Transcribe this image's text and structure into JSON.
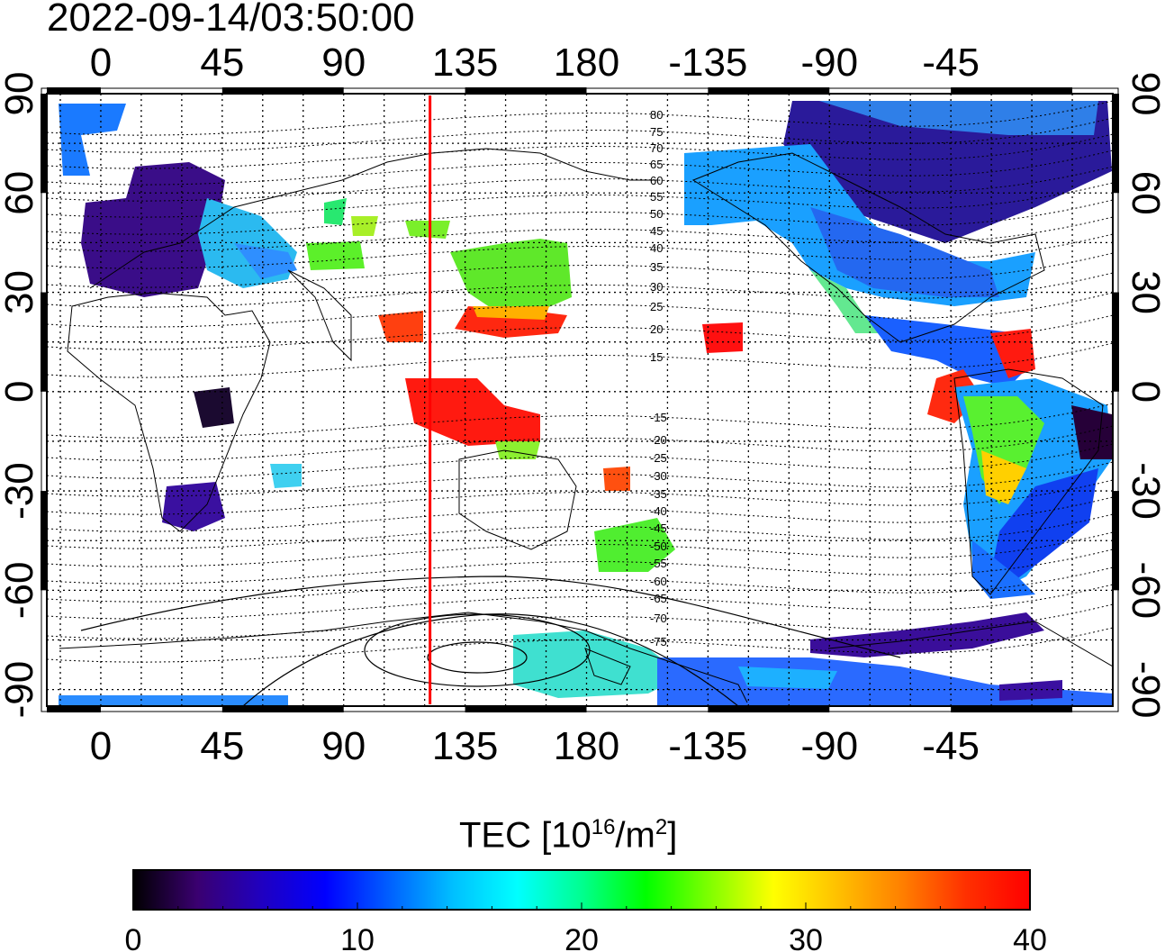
{
  "timestamp": "2022-09-14/03:50:00",
  "map": {
    "top_lon_ticks": [
      "0",
      "45",
      "90",
      "135",
      "180",
      "-135",
      "-90",
      "-45"
    ],
    "bottom_lon_ticks": [
      "0",
      "45",
      "90",
      "135",
      "180",
      "-135",
      "-90",
      "-45"
    ],
    "left_lat_ticks": [
      "90",
      "60",
      "30",
      "0",
      "-30",
      "-60",
      "-90"
    ],
    "right_lat_ticks": [
      "90",
      "60",
      "30",
      "0",
      "-30",
      "-60",
      "-90"
    ],
    "lon_values": [
      0,
      45,
      90,
      135,
      180,
      -135,
      -90,
      -45
    ],
    "lat_values": [
      90,
      60,
      30,
      0,
      -30,
      -60,
      -90
    ],
    "terminator_longitude": 122,
    "terminator_color": "#ff0000",
    "magnetic_latitude_labels": [
      "80",
      "75",
      "70",
      "65",
      "60",
      "55",
      "50",
      "45",
      "40",
      "35",
      "30",
      "25",
      "20",
      "15",
      "-15",
      "-20",
      "-25",
      "-30",
      "-35",
      "-40",
      "-45",
      "-50",
      "-55",
      "-60",
      "-65",
      "-70",
      "-75"
    ]
  },
  "colorbar": {
    "title_main": "TEC  [10",
    "title_exp1": "16",
    "title_mid": "/m",
    "title_exp2": "2",
    "title_end": "]",
    "tick_labels": [
      "0",
      "10",
      "20",
      "30",
      "40"
    ],
    "min": 0,
    "max": 40,
    "colors": [
      "#000000",
      "#3a0070",
      "#2000c0",
      "#0000ff",
      "#0060ff",
      "#00c0ff",
      "#00ffff",
      "#00ff90",
      "#00ff00",
      "#80ff00",
      "#ffff00",
      "#ffc000",
      "#ff8000",
      "#ff3000",
      "#ff0000"
    ]
  }
}
